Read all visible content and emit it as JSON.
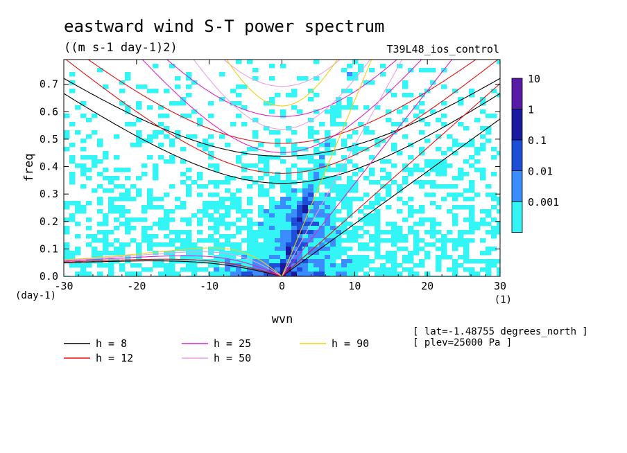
{
  "chart_data": {
    "type": "heatmap",
    "title": "eastward wind S-T power spectrum",
    "subtitle": "((m s-1 day-1)2)",
    "run_label": "T39L48_ios_control",
    "xlabel": "wvn",
    "ylabel": "freq",
    "x_unit": "(1)",
    "y_unit": "(day-1)",
    "xlim": [
      -30,
      30
    ],
    "ylim": [
      0,
      0.79
    ],
    "x_ticks": [
      "-30",
      "-20",
      "-10",
      "0",
      "10",
      "20",
      "30"
    ],
    "y_ticks": [
      "0.0",
      "0.1",
      "0.2",
      "0.3",
      "0.4",
      "0.5",
      "0.6",
      "0.7"
    ],
    "colorbar": {
      "labels": [
        "10",
        "1",
        "0.1",
        "0.01",
        "0.001"
      ],
      "colors": [
        "#5a1aa8",
        "#1a1aa0",
        "#1c4ed8",
        "#3b8cff",
        "#33f5f5"
      ]
    },
    "dispersion_curves": [
      {
        "name": "h = 8",
        "h": 8,
        "color": "#000000"
      },
      {
        "name": "h = 12",
        "h": 12,
        "color": "#e01010"
      },
      {
        "name": "h = 25",
        "h": 25,
        "color": "#e020c8"
      },
      {
        "name": "h = 50",
        "h": 50,
        "color": "#e8a0e8"
      },
      {
        "name": "h = 90",
        "h": 90,
        "color": "#f0d010"
      }
    ],
    "info": [
      "[ lat=-1.48755 degrees_north ]",
      "[ plev=25000 Pa ]"
    ]
  }
}
